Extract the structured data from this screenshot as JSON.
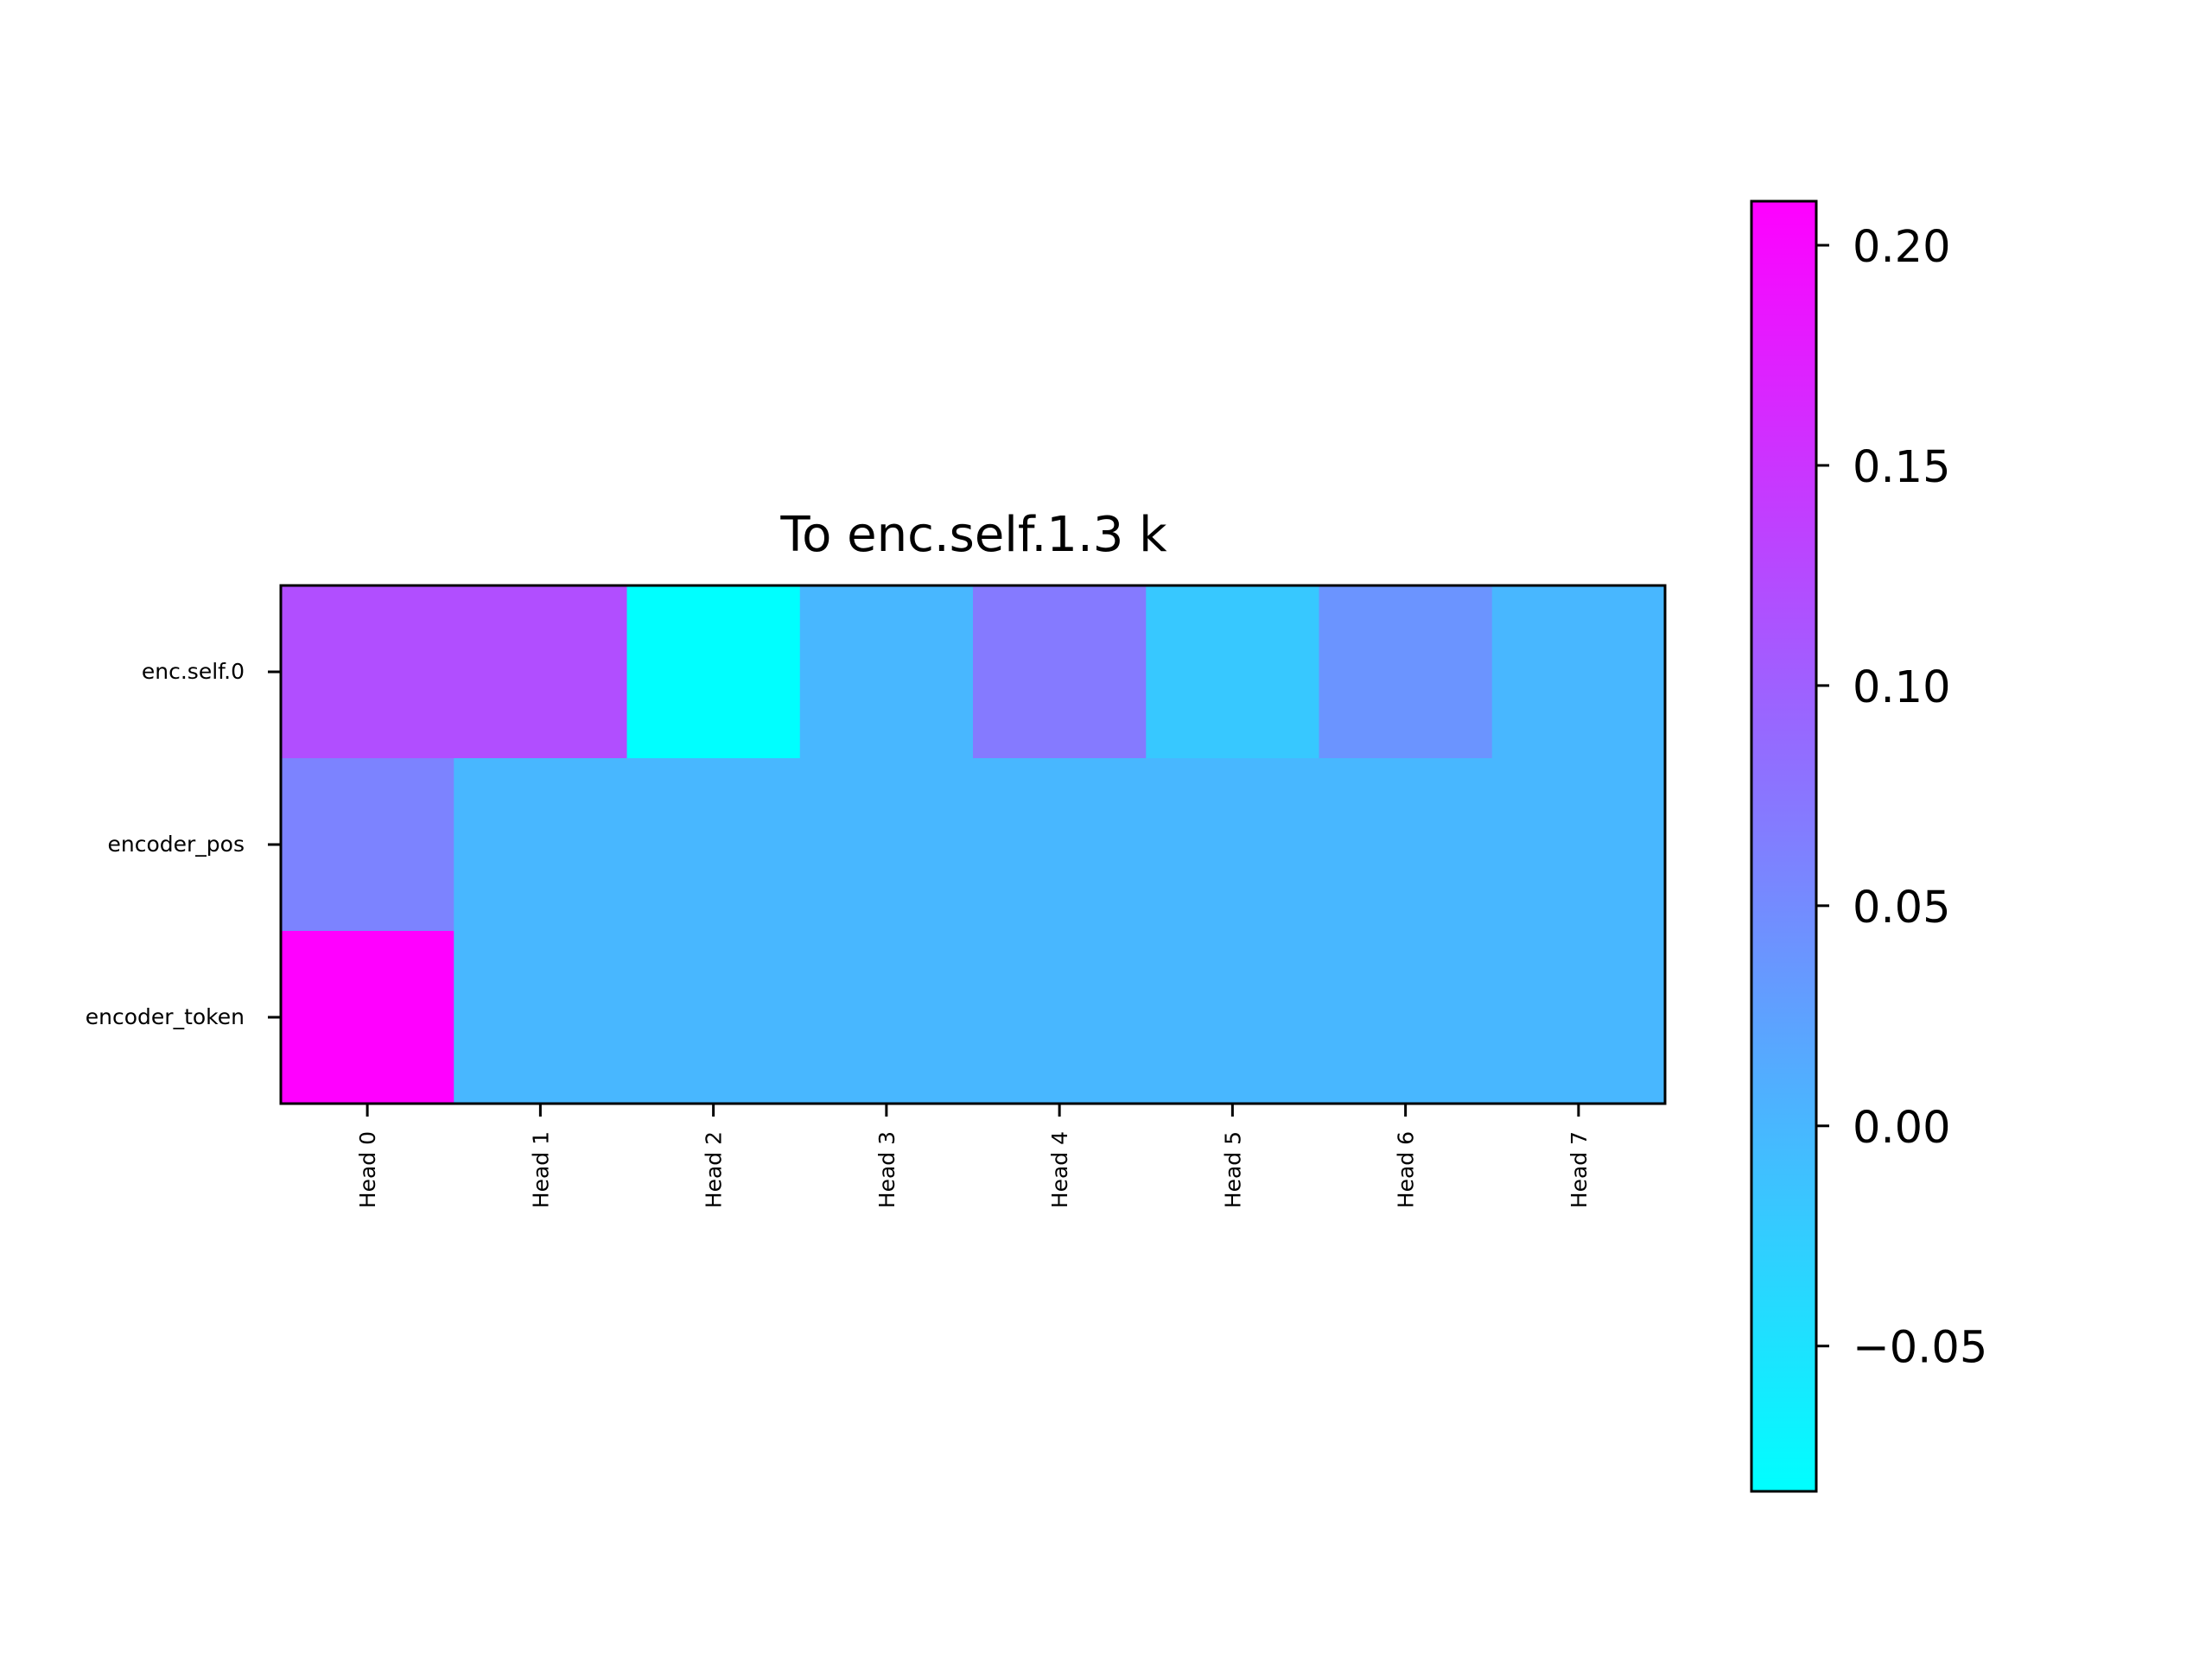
{
  "chart_data": {
    "type": "heatmap",
    "title": "To enc.self.1.3 k",
    "xlabel": "",
    "ylabel": "",
    "x_categories": [
      "Head 0",
      "Head 1",
      "Head 2",
      "Head 3",
      "Head 4",
      "Head 5",
      "Head 6",
      "Head 7"
    ],
    "y_categories": [
      "enc.self.0",
      "encoder_pos",
      "encoder_token"
    ],
    "values": [
      [
        0.12,
        0.12,
        -0.083,
        0.0,
        0.07,
        -0.02,
        0.04,
        0.0
      ],
      [
        0.06,
        0.0,
        0.0,
        0.0,
        0.0,
        0.0,
        0.0,
        0.0
      ],
      [
        0.21,
        0.0,
        0.0,
        0.0,
        0.0,
        0.0,
        0.0,
        0.0
      ]
    ],
    "colormap": "cool",
    "colormap_start": "#00ffff",
    "colormap_end": "#ff00ff",
    "colorbar": {
      "vmin": -0.083,
      "vmax": 0.21,
      "ticks": [
        -0.05,
        0.0,
        0.05,
        0.1,
        0.15,
        0.2
      ],
      "tick_labels": [
        "−0.05",
        "0.00",
        "0.05",
        "0.10",
        "0.15",
        "0.20"
      ],
      "placement": "right"
    },
    "grid": false
  }
}
